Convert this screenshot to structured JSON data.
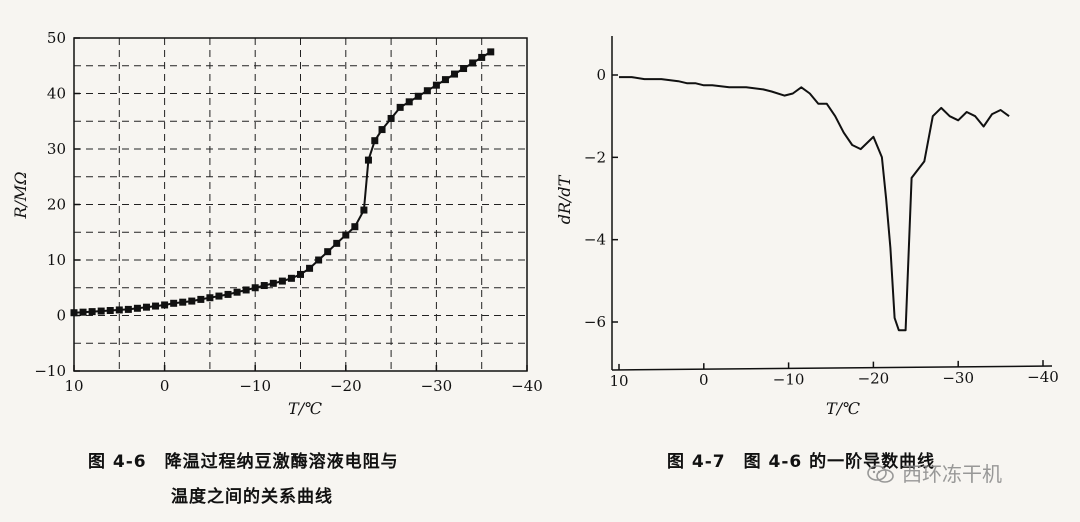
{
  "chart_data": [
    {
      "type": "scatter",
      "ylabel": "R/MΩ",
      "xlabel": "T/℃",
      "xlim": [
        10,
        -40
      ],
      "ylim": [
        -10,
        50
      ],
      "x_ticks": [
        "10",
        "0",
        "−10",
        "−20",
        "−30",
        "−40"
      ],
      "y_ticks": [
        "50",
        "40",
        "30",
        "20",
        "10",
        "0",
        "−10"
      ],
      "grid": "dashed",
      "series": [
        {
          "x": [
            10,
            9,
            8,
            7,
            6,
            5,
            4,
            3,
            2,
            1,
            0,
            -1,
            -2,
            -3,
            -4,
            -5,
            -6,
            -7,
            -8,
            -9,
            -10,
            -11,
            -12,
            -13,
            -14,
            -15,
            -16,
            -17,
            -18,
            -19,
            -20,
            -21,
            -22,
            -22.5,
            -23.2,
            -24,
            -25,
            -26,
            -27,
            -28,
            -29,
            -30,
            -31,
            -32,
            -33,
            -34,
            -35,
            -36
          ],
          "y": [
            0.5,
            0.6,
            0.7,
            0.8,
            0.9,
            1.0,
            1.1,
            1.3,
            1.5,
            1.7,
            1.9,
            2.2,
            2.4,
            2.6,
            2.9,
            3.2,
            3.5,
            3.8,
            4.2,
            4.6,
            5.0,
            5.4,
            5.8,
            6.2,
            6.7,
            7.4,
            8.5,
            10.0,
            11.5,
            13.0,
            14.5,
            16.0,
            19.0,
            28.0,
            31.5,
            33.5,
            35.5,
            37.5,
            38.5,
            39.5,
            40.5,
            41.5,
            42.5,
            43.5,
            44.5,
            45.5,
            46.5,
            47.5
          ]
        }
      ]
    },
    {
      "type": "line",
      "ylabel": "dR/dT",
      "xlabel": "T/℃",
      "xlim": [
        10,
        -40
      ],
      "ylim": [
        -7,
        1
      ],
      "x_ticks": [
        "10",
        "0",
        "−10",
        "−20",
        "−30",
        "−40"
      ],
      "y_ticks": [
        "0",
        "−2",
        "−4",
        "−6"
      ],
      "grid": "off",
      "series": [
        {
          "x": [
            10,
            8.5,
            7,
            5,
            3,
            2,
            1,
            0,
            -1,
            -3,
            -5,
            -7,
            -8,
            -9.5,
            -10.5,
            -11.5,
            -12.5,
            -13.5,
            -14.5,
            -15.5,
            -16.5,
            -17.5,
            -18.5,
            -19.5,
            -20,
            -21,
            -21.5,
            -22,
            -22.5,
            -23,
            -23.8,
            -24.5,
            -26,
            -27,
            -28,
            -29,
            -30,
            -31,
            -32,
            -33,
            -34,
            -35,
            -36
          ],
          "y": [
            -0.05,
            -0.05,
            -0.1,
            -0.1,
            -0.15,
            -0.2,
            -0.2,
            -0.25,
            -0.25,
            -0.3,
            -0.3,
            -0.35,
            -0.4,
            -0.5,
            -0.45,
            -0.3,
            -0.45,
            -0.7,
            -0.7,
            -1.0,
            -1.4,
            -1.7,
            -1.8,
            -1.6,
            -1.5,
            -2.0,
            -3.0,
            -4.2,
            -5.9,
            -6.2,
            -6.2,
            -2.5,
            -2.1,
            -1.0,
            -0.8,
            -1.0,
            -1.1,
            -0.9,
            -1.0,
            -1.25,
            -0.95,
            -0.85,
            -1.0
          ]
        }
      ]
    }
  ],
  "captions": {
    "fig46_line1": "图 4-6　降温过程纳豆激酶溶液电阻与",
    "fig46_line2": "温度之间的关系曲线",
    "fig47": "图 4-7　图 4-6 的一阶导数曲线"
  },
  "watermark": {
    "text": "西环冻干机",
    "icon": "wechat-icon"
  }
}
